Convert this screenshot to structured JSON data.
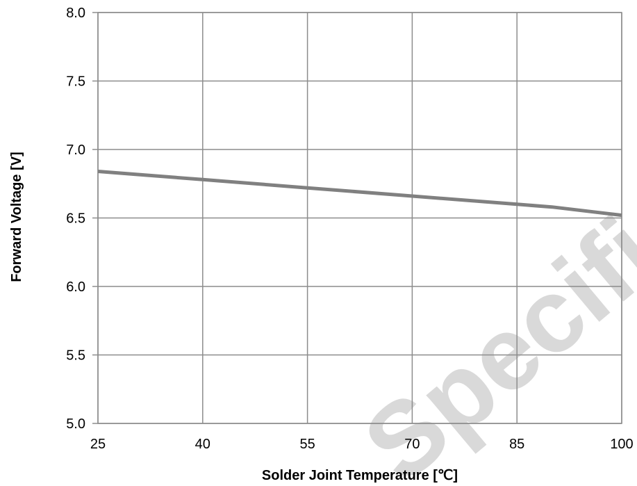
{
  "chart_data": {
    "type": "line",
    "title": "",
    "xlabel": "Solder Joint Temperature [℃]",
    "ylabel": "Forward Voltage [V]",
    "xlim": [
      25,
      100
    ],
    "ylim": [
      5.0,
      8.0
    ],
    "x_ticks": [
      25,
      40,
      55,
      70,
      85,
      100
    ],
    "y_ticks": [
      "5.0",
      "5.5",
      "6.0",
      "6.5",
      "7.0",
      "7.5",
      "8.0"
    ],
    "grid": true,
    "legend": "none",
    "series": [
      {
        "x": [
          25,
          40,
          55,
          70,
          85,
          90,
          100
        ],
        "y": [
          6.84,
          6.78,
          6.72,
          6.66,
          6.6,
          6.58,
          6.52
        ],
        "color": "#808080"
      }
    ]
  },
  "watermark": {
    "text": "Specification",
    "color": "#d9d9d9"
  }
}
